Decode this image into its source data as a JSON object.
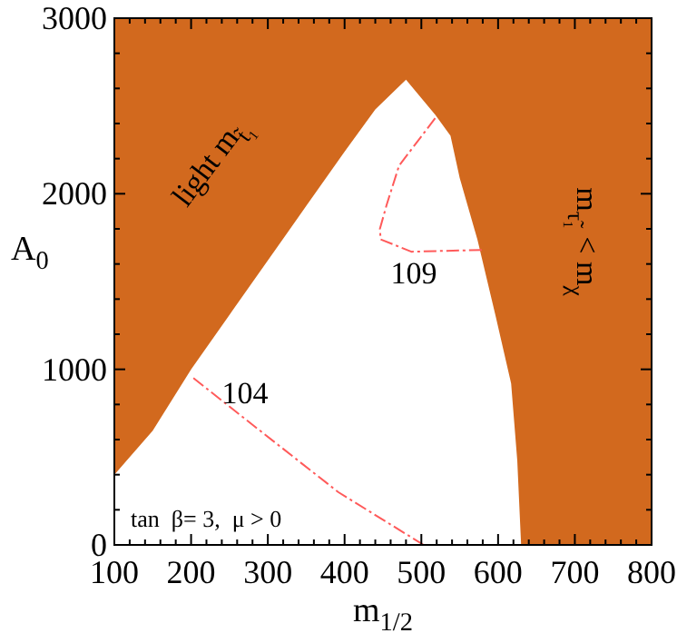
{
  "chart_data": {
    "type": "area",
    "xlabel": "m$_{1/2}$",
    "ylabel": "A$_{0}$",
    "xlim": [
      100,
      800
    ],
    "ylim": [
      0,
      3000
    ],
    "xticks": [
      100,
      {
        "value": 120,
        "label": null
      },
      {
        "value": 140,
        "label": null
      },
      {
        "value": 160,
        "label": null
      },
      {
        "value": 180,
        "label": null
      },
      200,
      {
        "value": 220,
        "label": null
      },
      {
        "value": 240,
        "label": null
      },
      {
        "value": 260,
        "label": null
      },
      {
        "value": 280,
        "label": null
      },
      300,
      {
        "value": 320,
        "label": null
      },
      {
        "value": 340,
        "label": null
      },
      {
        "value": 360,
        "label": null
      },
      {
        "value": 380,
        "label": null
      },
      400,
      {
        "value": 420,
        "label": null
      },
      {
        "value": 440,
        "label": null
      },
      {
        "value": 460,
        "label": null
      },
      {
        "value": 480,
        "label": null
      },
      500,
      {
        "value": 520,
        "label": null
      },
      {
        "value": 540,
        "label": null
      },
      {
        "value": 560,
        "label": null
      },
      {
        "value": 580,
        "label": null
      },
      600,
      {
        "value": 620,
        "label": null
      },
      {
        "value": 640,
        "label": null
      },
      {
        "value": 660,
        "label": null
      },
      {
        "value": 680,
        "label": null
      },
      700,
      {
        "value": 720,
        "label": null
      },
      {
        "value": 740,
        "label": null
      },
      {
        "value": 760,
        "label": null
      },
      {
        "value": 780,
        "label": null
      },
      800
    ],
    "yticks": [
      0,
      {
        "value": 200,
        "label": null
      },
      {
        "value": 400,
        "label": null
      },
      {
        "value": 600,
        "label": null
      },
      {
        "value": 800,
        "label": null
      },
      1000,
      {
        "value": 1200,
        "label": null
      },
      {
        "value": 1400,
        "label": null
      },
      {
        "value": 1600,
        "label": null
      },
      {
        "value": 1800,
        "label": null
      },
      2000,
      {
        "value": 2200,
        "label": null
      },
      {
        "value": 2400,
        "label": null
      },
      {
        "value": 2600,
        "label": null
      },
      {
        "value": 2800,
        "label": null
      },
      3000
    ],
    "grid": false,
    "bands": [
      {
        "axis": "x",
        "from": 100,
        "to": 800,
        "color": "#d2691e"
      }
    ],
    "series": [
      {
        "color": "#ffffff",
        "x": [
          100,
          150,
          200,
          250,
          300,
          350,
          400,
          440,
          480,
          518,
          538,
          550,
          573,
          597,
          617,
          625,
          630
        ],
        "values": [
          400,
          650,
          1000,
          1310,
          1620,
          1930,
          2240,
          2480,
          2650,
          2450,
          2330,
          2090,
          1740,
          1300,
          920,
          480,
          0
        ]
      },
      {
        "type": "line",
        "color": "#ff5a5a",
        "line_style": "dashed",
        "marker": "none",
        "x": [
          203,
          290,
          392,
          503
        ],
        "values": [
          950,
          650,
          300,
          0
        ]
      },
      {
        "type": "line",
        "color": "#ff5a5a",
        "line_style": "dashed",
        "marker": "none",
        "x": [
          518,
          471,
          455,
          446,
          447,
          487,
          581
        ],
        "values": [
          2430,
          2160,
          1940,
          1800,
          1740,
          1670,
          1680
        ]
      }
    ],
    "annotations": [
      "104",
      "109",
      "light m$_{t̃₁}$",
      "m$_{τ̃₁}$ < m$_{χ}$",
      "tan  β= 3,  μ > 0"
    ]
  }
}
